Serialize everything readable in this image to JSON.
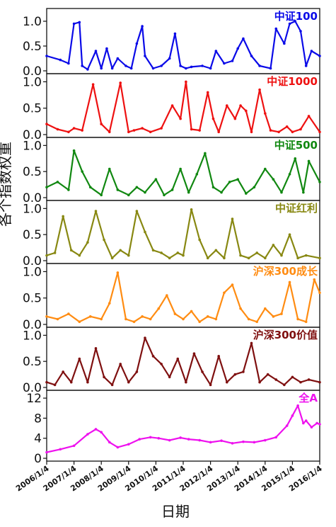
{
  "chart_data": {
    "type": "line",
    "xlabel": "日期",
    "ylabel": "各个指数权重",
    "x_ticks": [
      "2006/1/4",
      "2007/1/4",
      "2008/1/4",
      "2009/1/4",
      "2010/1/4",
      "2011/1/4",
      "2012/1/4",
      "2013/1/4",
      "2014/1/4",
      "2015/1/4",
      "2016/1/4"
    ],
    "panels": [
      {
        "name": "中证100",
        "color": "#0a0ae8",
        "ylim": [
          0,
          1.2
        ],
        "yticks": [
          "0.0",
          "0.5",
          "1.0"
        ],
        "x": [
          2006.0,
          2006.5,
          2006.8,
          2007.0,
          2007.2,
          2007.3,
          2007.5,
          2007.8,
          2008.0,
          2008.2,
          2008.4,
          2008.6,
          2008.9,
          2009.1,
          2009.3,
          2009.5,
          2009.6,
          2009.9,
          2010.2,
          2010.5,
          2010.7,
          2010.9,
          2011.1,
          2011.3,
          2011.7,
          2012.0,
          2012.2,
          2012.5,
          2012.8,
          2013.0,
          2013.2,
          2013.5,
          2013.8,
          2014.2,
          2014.4,
          2014.7,
          2014.9,
          2015.1,
          2015.3,
          2015.5,
          2015.7,
          2016.0
        ],
        "values": [
          0.3,
          0.22,
          0.15,
          0.95,
          0.98,
          0.1,
          0.03,
          0.4,
          0.05,
          0.45,
          0.05,
          0.25,
          0.1,
          0.05,
          0.55,
          0.9,
          0.3,
          0.05,
          0.1,
          0.25,
          0.75,
          0.1,
          0.05,
          0.08,
          0.1,
          0.05,
          0.4,
          0.15,
          0.2,
          0.45,
          0.65,
          0.3,
          0.1,
          0.05,
          0.85,
          0.55,
          0.95,
          1.0,
          0.8,
          0.1,
          0.4,
          0.3
        ]
      },
      {
        "name": "中证1000",
        "color": "#ee1111",
        "ylim": [
          0,
          1.1
        ],
        "yticks": [
          "0.0",
          "0.5",
          "1.0"
        ],
        "x": [
          2006.0,
          2006.4,
          2006.8,
          2007.0,
          2007.3,
          2007.7,
          2008.0,
          2008.3,
          2008.7,
          2009.0,
          2009.2,
          2009.5,
          2009.8,
          2010.2,
          2010.6,
          2010.9,
          2011.1,
          2011.3,
          2011.6,
          2011.9,
          2012.1,
          2012.3,
          2012.6,
          2012.9,
          2013.1,
          2013.3,
          2013.5,
          2013.8,
          2014.0,
          2014.2,
          2014.5,
          2014.8,
          2015.0,
          2015.3,
          2015.6,
          2016.0
        ],
        "values": [
          0.2,
          0.1,
          0.05,
          0.12,
          0.08,
          0.95,
          0.2,
          0.05,
          0.98,
          0.05,
          0.08,
          0.12,
          0.05,
          0.12,
          0.55,
          0.3,
          1.0,
          0.1,
          0.08,
          0.8,
          0.3,
          0.05,
          0.55,
          0.3,
          0.55,
          0.45,
          0.05,
          0.85,
          0.4,
          0.08,
          0.05,
          0.15,
          0.05,
          0.1,
          0.35,
          0.05
        ]
      },
      {
        "name": "中证500",
        "color": "#118811",
        "ylim": [
          0,
          1.1
        ],
        "yticks": [
          "0.0",
          "0.5",
          "1.0"
        ],
        "x": [
          2006.0,
          2006.4,
          2006.8,
          2007.0,
          2007.3,
          2007.6,
          2008.0,
          2008.3,
          2008.6,
          2009.0,
          2009.3,
          2009.6,
          2010.0,
          2010.3,
          2010.6,
          2010.9,
          2011.2,
          2011.5,
          2011.8,
          2012.1,
          2012.4,
          2012.7,
          2013.0,
          2013.3,
          2013.6,
          2014.0,
          2014.3,
          2014.6,
          2014.9,
          2015.1,
          2015.4,
          2015.6,
          2016.0
        ],
        "values": [
          0.2,
          0.3,
          0.15,
          0.9,
          0.5,
          0.2,
          0.05,
          0.55,
          0.15,
          0.05,
          0.2,
          0.1,
          0.35,
          0.05,
          0.15,
          0.55,
          0.1,
          0.45,
          0.85,
          0.2,
          0.1,
          0.3,
          0.35,
          0.08,
          0.2,
          0.55,
          0.35,
          0.1,
          0.45,
          0.75,
          0.1,
          0.7,
          0.3
        ]
      },
      {
        "name": "中证红利",
        "color": "#888812",
        "ylim": [
          0,
          1.1
        ],
        "yticks": [
          "0.0",
          "0.5",
          "1.0"
        ],
        "x": [
          2006.0,
          2006.3,
          2006.6,
          2006.9,
          2007.2,
          2007.5,
          2007.8,
          2008.1,
          2008.4,
          2008.7,
          2009.0,
          2009.3,
          2009.6,
          2009.9,
          2010.2,
          2010.5,
          2010.8,
          2011.0,
          2011.3,
          2011.6,
          2011.9,
          2012.2,
          2012.5,
          2012.8,
          2013.1,
          2013.4,
          2013.7,
          2014.0,
          2014.3,
          2014.6,
          2014.9,
          2015.2,
          2015.5,
          2016.0
        ],
        "values": [
          0.1,
          0.15,
          0.85,
          0.2,
          0.1,
          0.35,
          0.95,
          0.4,
          0.05,
          0.2,
          0.1,
          0.95,
          0.55,
          0.2,
          0.15,
          0.05,
          0.15,
          0.1,
          0.98,
          0.4,
          0.05,
          0.2,
          0.05,
          0.8,
          0.1,
          0.05,
          0.15,
          0.05,
          0.3,
          0.1,
          0.5,
          0.05,
          0.1,
          0.05
        ]
      },
      {
        "name": "沪深300成长",
        "color": "#ff8c12",
        "ylim": [
          0,
          1.1
        ],
        "yticks": [
          "0.0",
          "0.5",
          "1.0"
        ],
        "x": [
          2006.0,
          2006.4,
          2006.8,
          2007.2,
          2007.6,
          2008.0,
          2008.3,
          2008.6,
          2008.9,
          2009.2,
          2009.5,
          2009.8,
          2010.1,
          2010.4,
          2010.7,
          2011.0,
          2011.3,
          2011.6,
          2011.9,
          2012.2,
          2012.5,
          2012.8,
          2013.1,
          2013.4,
          2013.7,
          2014.0,
          2014.3,
          2014.6,
          2014.9,
          2015.2,
          2015.5,
          2015.8,
          2016.0
        ],
        "values": [
          0.15,
          0.1,
          0.2,
          0.05,
          0.15,
          0.1,
          0.4,
          0.98,
          0.1,
          0.05,
          0.15,
          0.1,
          0.3,
          0.55,
          0.2,
          0.1,
          0.25,
          0.05,
          0.15,
          0.1,
          0.6,
          0.75,
          0.3,
          0.1,
          0.05,
          0.3,
          0.15,
          0.2,
          0.8,
          0.1,
          0.05,
          0.85,
          0.6
        ]
      },
      {
        "name": "沪深300价值",
        "color": "#7f1010",
        "ylim": [
          0,
          1.1
        ],
        "yticks": [
          "0.0",
          "0.5",
          "1.0"
        ],
        "x": [
          2006.0,
          2006.3,
          2006.6,
          2006.9,
          2007.2,
          2007.5,
          2007.8,
          2008.1,
          2008.4,
          2008.7,
          2009.0,
          2009.3,
          2009.6,
          2009.9,
          2010.2,
          2010.5,
          2010.8,
          2011.1,
          2011.4,
          2011.7,
          2012.0,
          2012.3,
          2012.6,
          2012.9,
          2013.2,
          2013.5,
          2013.8,
          2014.1,
          2014.4,
          2014.7,
          2015.0,
          2015.3,
          2015.6,
          2016.0
        ],
        "values": [
          0.1,
          0.05,
          0.3,
          0.1,
          0.55,
          0.1,
          0.75,
          0.2,
          0.05,
          0.45,
          0.1,
          0.3,
          0.95,
          0.6,
          0.45,
          0.2,
          0.55,
          0.1,
          0.65,
          0.3,
          0.05,
          0.6,
          0.1,
          0.25,
          0.3,
          0.85,
          0.1,
          0.25,
          0.15,
          0.05,
          0.2,
          0.1,
          0.15,
          0.1
        ]
      },
      {
        "name": "全A",
        "color": "#ee11ee",
        "ylim": [
          0,
          13
        ],
        "yticks": [
          "0",
          "4",
          "8",
          "12"
        ],
        "x": [
          2006.0,
          2006.5,
          2007.0,
          2007.5,
          2007.8,
          2008.0,
          2008.3,
          2008.6,
          2009.0,
          2009.4,
          2009.8,
          2010.1,
          2010.5,
          2010.9,
          2011.2,
          2011.6,
          2012.0,
          2012.4,
          2012.8,
          2013.2,
          2013.6,
          2014.0,
          2014.4,
          2014.8,
          2015.0,
          2015.2,
          2015.4,
          2015.5,
          2015.7,
          2015.9,
          2016.0
        ],
        "values": [
          1.2,
          1.8,
          2.5,
          4.8,
          5.8,
          5.2,
          3.2,
          2.2,
          2.8,
          3.8,
          4.2,
          4.0,
          3.6,
          4.1,
          3.8,
          3.6,
          3.2,
          3.5,
          3.0,
          3.3,
          3.2,
          3.6,
          4.2,
          6.5,
          8.5,
          10.5,
          7.0,
          7.5,
          6.2,
          7.0,
          6.8
        ]
      }
    ]
  }
}
